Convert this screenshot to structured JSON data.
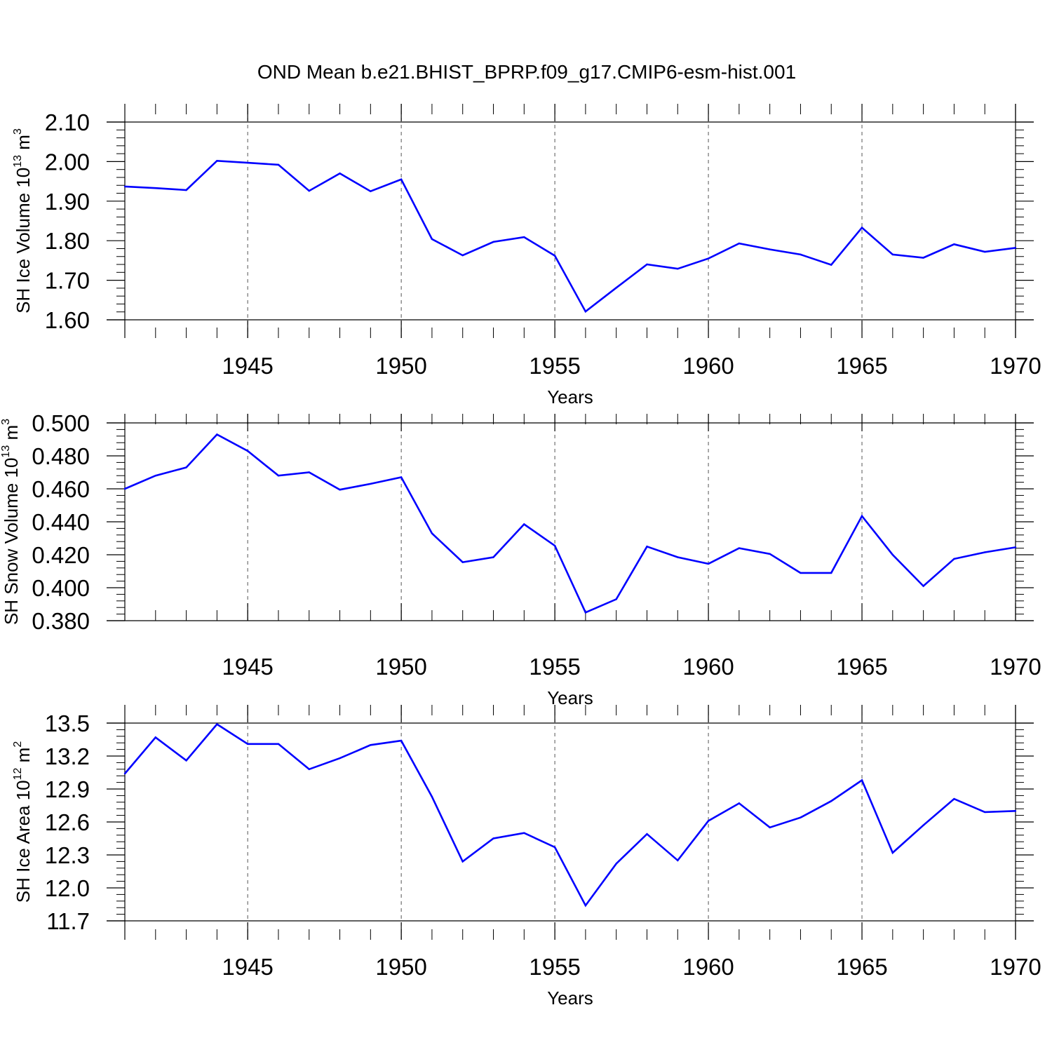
{
  "title": "OND Mean b.e21.BHIST_BPRP.f09_g17.CMIP6-esm-hist.001",
  "colors": {
    "line": "#0000ff",
    "axis": "#000000",
    "grid": "#555555"
  },
  "chart_data": [
    {
      "type": "line",
      "xlabel": "Years",
      "ylabel": {
        "main": "SH Ice Volume 10",
        "exp1": "13",
        "mid": " m",
        "exp2": "3"
      },
      "xlim": [
        1941,
        1970
      ],
      "ylim": [
        1.6,
        2.1
      ],
      "x_ticks": [
        "1945",
        "1950",
        "1955",
        "1960",
        "1965",
        "1970"
      ],
      "y_ticks": [
        "1.60",
        "1.70",
        "1.80",
        "1.90",
        "2.00",
        "2.10"
      ],
      "grid": "vertical dashed at major x ticks",
      "x": [
        1941,
        1942,
        1943,
        1944,
        1945,
        1946,
        1947,
        1948,
        1949,
        1950,
        1951,
        1952,
        1953,
        1954,
        1955,
        1956,
        1957,
        1958,
        1959,
        1960,
        1961,
        1962,
        1963,
        1964,
        1965,
        1966,
        1967,
        1968,
        1969,
        1970
      ],
      "values": [
        1.937,
        1.933,
        1.928,
        2.002,
        1.997,
        1.992,
        1.926,
        1.97,
        1.925,
        1.955,
        1.804,
        1.763,
        1.797,
        1.809,
        1.762,
        1.621,
        1.681,
        1.74,
        1.729,
        1.755,
        1.793,
        1.778,
        1.765,
        1.739,
        1.833,
        1.765,
        1.757,
        1.791,
        1.772,
        1.782
      ]
    },
    {
      "type": "line",
      "xlabel": "Years",
      "ylabel": {
        "main": "SH Snow Volume 10",
        "exp1": "13",
        "mid": " m",
        "exp2": "3"
      },
      "xlim": [
        1941,
        1970
      ],
      "ylim": [
        0.38,
        0.5
      ],
      "x_ticks": [
        "1945",
        "1950",
        "1955",
        "1960",
        "1965",
        "1970"
      ],
      "y_ticks": [
        "0.380",
        "0.400",
        "0.420",
        "0.440",
        "0.460",
        "0.480",
        "0.500"
      ],
      "grid": "vertical dashed at major x ticks",
      "x": [
        1941,
        1942,
        1943,
        1944,
        1945,
        1946,
        1947,
        1948,
        1949,
        1950,
        1951,
        1952,
        1953,
        1954,
        1955,
        1956,
        1957,
        1958,
        1959,
        1960,
        1961,
        1962,
        1963,
        1964,
        1965,
        1966,
        1967,
        1968,
        1969,
        1970
      ],
      "values": [
        0.46,
        0.468,
        0.473,
        0.493,
        0.483,
        0.468,
        0.47,
        0.4595,
        0.463,
        0.467,
        0.433,
        0.4155,
        0.4185,
        0.4385,
        0.4255,
        0.385,
        0.393,
        0.425,
        0.4185,
        0.4145,
        0.424,
        0.4205,
        0.409,
        0.409,
        0.4435,
        0.42,
        0.401,
        0.4175,
        0.4215,
        0.4245
      ]
    },
    {
      "type": "line",
      "xlabel": "Years",
      "ylabel": {
        "main": "SH Ice Area 10",
        "exp1": "12",
        "mid": " m",
        "exp2": "2"
      },
      "xlim": [
        1941,
        1970
      ],
      "ylim": [
        11.7,
        13.5
      ],
      "x_ticks": [
        "1945",
        "1950",
        "1955",
        "1960",
        "1965",
        "1970"
      ],
      "y_ticks": [
        "11.7",
        "12.0",
        "12.3",
        "12.6",
        "12.9",
        "13.2",
        "13.5"
      ],
      "grid": "vertical dashed at major x ticks",
      "x": [
        1941,
        1942,
        1943,
        1944,
        1945,
        1946,
        1947,
        1948,
        1949,
        1950,
        1951,
        1952,
        1953,
        1954,
        1955,
        1956,
        1957,
        1958,
        1959,
        1960,
        1961,
        1962,
        1963,
        1964,
        1965,
        1966,
        1967,
        1968,
        1969,
        1970
      ],
      "values": [
        13.04,
        13.37,
        13.16,
        13.49,
        13.31,
        13.31,
        13.08,
        13.18,
        13.3,
        13.34,
        12.83,
        12.24,
        12.45,
        12.5,
        12.37,
        11.84,
        12.22,
        12.49,
        12.25,
        12.61,
        12.77,
        12.55,
        12.64,
        12.79,
        12.98,
        12.32,
        12.57,
        12.81,
        12.69,
        12.7
      ]
    }
  ]
}
